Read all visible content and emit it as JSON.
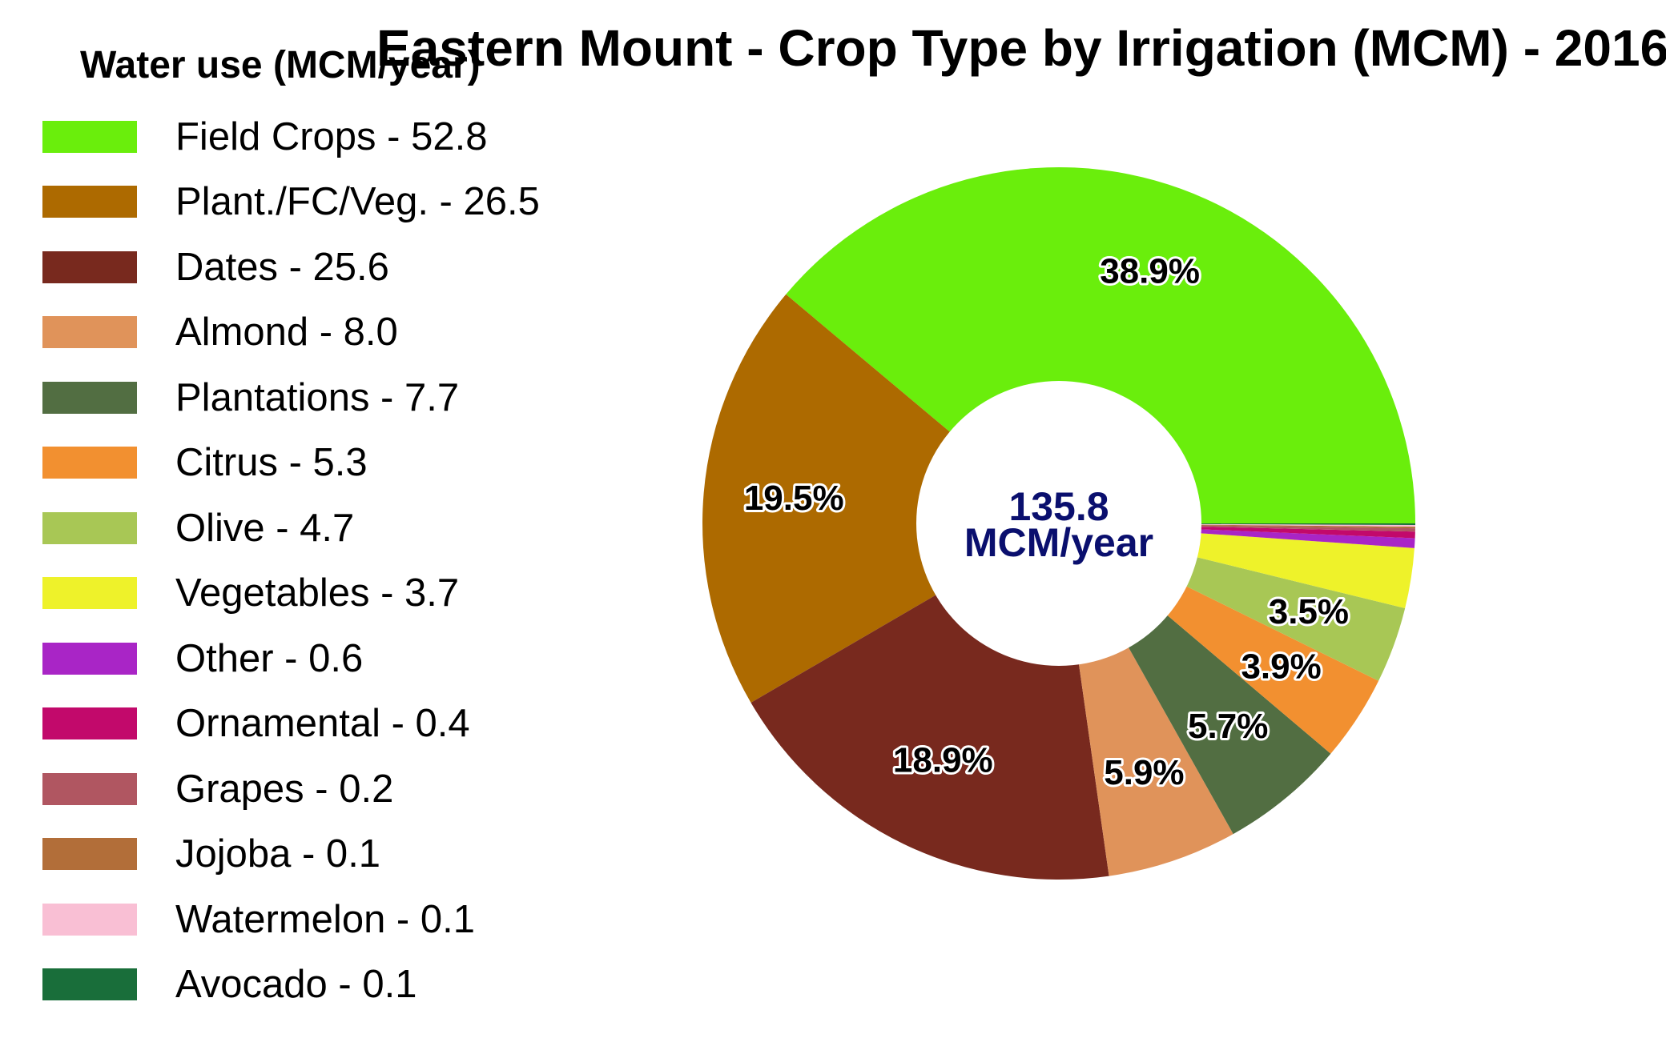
{
  "chart_data": {
    "type": "pie",
    "style": "donut",
    "title": "Eastern Mount - Crop Type by Irrigation (MCM) - 2016",
    "legend_title": "Water use (MCM/year)",
    "legend_position": "left",
    "center_total": "135.8",
    "center_unit": "MCM/year",
    "center_color": "#0a0f6e",
    "slices": [
      {
        "label": "Field Crops",
        "value": 52.8,
        "legend": "Field Crops - 52.8",
        "percent_label": "38.9%",
        "color": "#6aee0c"
      },
      {
        "label": "Plant./FC/Veg.",
        "value": 26.5,
        "legend": "Plant./FC/Veg. - 26.5",
        "percent_label": "19.5%",
        "color": "#ad6a00"
      },
      {
        "label": "Dates",
        "value": 25.6,
        "legend": "Dates - 25.6",
        "percent_label": "18.9%",
        "color": "#78291e"
      },
      {
        "label": "Almond",
        "value": 8.0,
        "legend": "Almond - 8.0",
        "percent_label": "5.9%",
        "color": "#e0935a"
      },
      {
        "label": "Plantations",
        "value": 7.7,
        "legend": "Plantations - 7.7",
        "percent_label": "5.7%",
        "color": "#526e42"
      },
      {
        "label": "Citrus",
        "value": 5.3,
        "legend": "Citrus - 5.3",
        "percent_label": "3.9%",
        "color": "#f29030"
      },
      {
        "label": "Olive",
        "value": 4.7,
        "legend": "Olive - 4.7",
        "percent_label": "3.5%",
        "color": "#a8c755"
      },
      {
        "label": "Vegetables",
        "value": 3.7,
        "legend": "Vegetables - 3.7",
        "percent_label": "",
        "color": "#eef22a"
      },
      {
        "label": "Other",
        "value": 0.6,
        "legend": "Other - 0.6",
        "percent_label": "",
        "color": "#a925c6"
      },
      {
        "label": "Ornamental",
        "value": 0.4,
        "legend": "Ornamental - 0.4",
        "percent_label": "",
        "color": "#c2096b"
      },
      {
        "label": "Grapes",
        "value": 0.2,
        "legend": "Grapes - 0.2",
        "percent_label": "",
        "color": "#b05661"
      },
      {
        "label": "Jojoba",
        "value": 0.1,
        "legend": "Jojoba - 0.1",
        "percent_label": "",
        "color": "#b26e39"
      },
      {
        "label": "Watermelon",
        "value": 0.1,
        "legend": "Watermelon - 0.1",
        "percent_label": "",
        "color": "#f9bfd4"
      },
      {
        "label": "Avocado",
        "value": 0.1,
        "legend": "Avocado - 0.1",
        "percent_label": "",
        "color": "#196e3a"
      }
    ]
  }
}
